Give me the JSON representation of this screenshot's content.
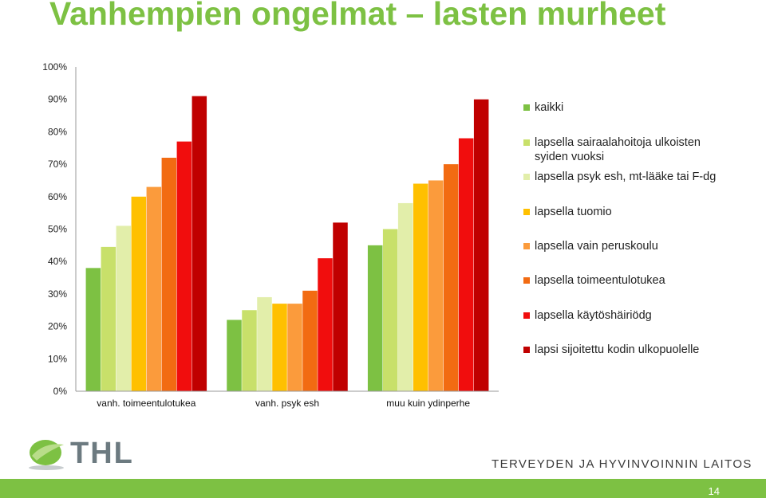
{
  "title": "Vanhempien ongelmat – lasten murheet",
  "footer": {
    "logo_text": "THL",
    "institute": "TERVEYDEN JA HYVINVOINNIN LAITOS",
    "page_number": "14"
  },
  "colors": {
    "title": "#7dc143",
    "footer_bar": "#7dc143"
  },
  "chart_data": {
    "type": "bar",
    "categories": [
      "vanh. toimeentulotukea",
      "vanh. psyk esh",
      "muu kuin ydinperhe"
    ],
    "ylim": [
      0,
      100
    ],
    "yticks": [
      "0%",
      "10%",
      "20%",
      "30%",
      "40%",
      "50%",
      "60%",
      "70%",
      "80%",
      "90%",
      "100%"
    ],
    "legend_position": "right",
    "series": [
      {
        "name": "kaikki",
        "color": "#7dc143",
        "values": [
          38,
          22,
          45
        ]
      },
      {
        "name": "lapsella sairaalahoitoja ulkoisten syiden vuoksi",
        "color": "#c8e06a",
        "values": [
          44.5,
          25,
          50
        ]
      },
      {
        "name": "lapsella psyk esh, mt-lääke tai F-dg",
        "color": "#e2eeaa",
        "values": [
          51,
          29,
          58
        ]
      },
      {
        "name": "lapsella tuomio",
        "color": "#ffc000",
        "values": [
          60,
          27,
          64
        ]
      },
      {
        "name": "lapsella vain peruskoulu",
        "color": "#fb9b3c",
        "values": [
          63,
          27,
          65
        ]
      },
      {
        "name": "lapsella toimeentulotukea",
        "color": "#f26b12",
        "values": [
          72,
          31,
          70
        ]
      },
      {
        "name": "lapsella käytöshäiriödg",
        "color": "#f10d0d",
        "values": [
          77,
          41,
          78
        ]
      },
      {
        "name": "lapsi sijoitettu kodin ulkopuolelle",
        "color": "#c00000",
        "values": [
          91,
          52,
          90
        ]
      }
    ]
  }
}
